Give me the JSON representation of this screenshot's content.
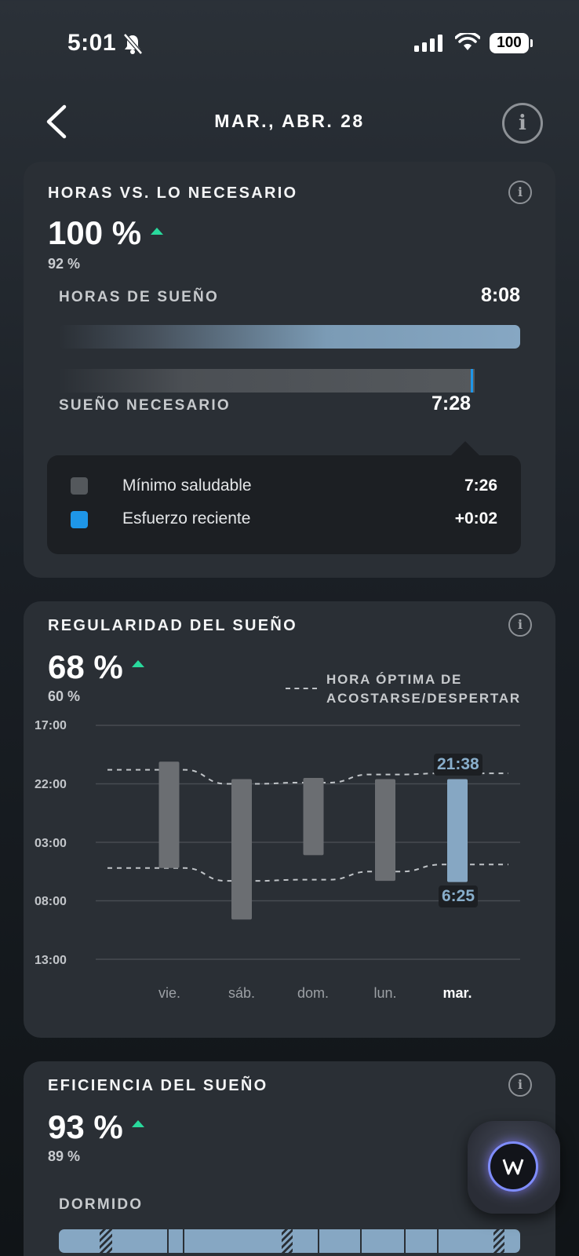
{
  "status": {
    "time": "5:01",
    "battery": "100"
  },
  "header": {
    "title": "MAR., ABR. 28"
  },
  "hours": {
    "title": "HORAS VS. LO NECESARIO",
    "pct": "100 %",
    "prev_pct": "92 %",
    "sleep_label": "HORAS DE SUEÑO",
    "sleep_value": "8:08",
    "need_label": "SUEÑO NECESARIO",
    "need_value": "7:28",
    "tooltip": [
      {
        "label": "Mínimo saludable",
        "value": "7:26",
        "color": "#54585c"
      },
      {
        "label": "Esfuerzo reciente",
        "value": "+0:02",
        "color": "#1e96e8"
      }
    ]
  },
  "regularity": {
    "title": "REGULARIDAD DEL SUEÑO",
    "pct": "68 %",
    "prev_pct": "60 %",
    "legend": "HORA ÓPTIMA DE ACOSTARSE/DESPERTAR",
    "callout_start": "21:38",
    "callout_end": "6:25"
  },
  "chart_data": {
    "type": "bar",
    "title": "REGULARIDAD DEL SUEÑO",
    "y_tick_labels": [
      "17:00",
      "22:00",
      "03:00",
      "08:00",
      "13:00"
    ],
    "ylim_hours_from_17": [
      0,
      20
    ],
    "categories": [
      "vie.",
      "sáb.",
      "dom.",
      "lun.",
      "mar."
    ],
    "series": [
      {
        "bed_hours_from_17": [
          3.1,
          4.6,
          4.5,
          4.6,
          4.6
        ],
        "wake_hours_from_17": [
          12.2,
          16.6,
          11.1,
          13.3,
          13.4
        ]
      }
    ],
    "optimal_bed_hours_from_17": [
      3.8,
      5.0,
      4.9,
      4.2,
      4.1
    ],
    "optimal_wake_hours_from_17": [
      12.2,
      13.3,
      13.2,
      12.5,
      11.9
    ],
    "highlight_color": "#86a7c3",
    "bar_color": "#6b6e72"
  },
  "efficiency": {
    "title": "EFICIENCIA DEL SUEÑO",
    "pct": "93 %",
    "prev_pct": "89 %",
    "label": "DORMIDO"
  }
}
